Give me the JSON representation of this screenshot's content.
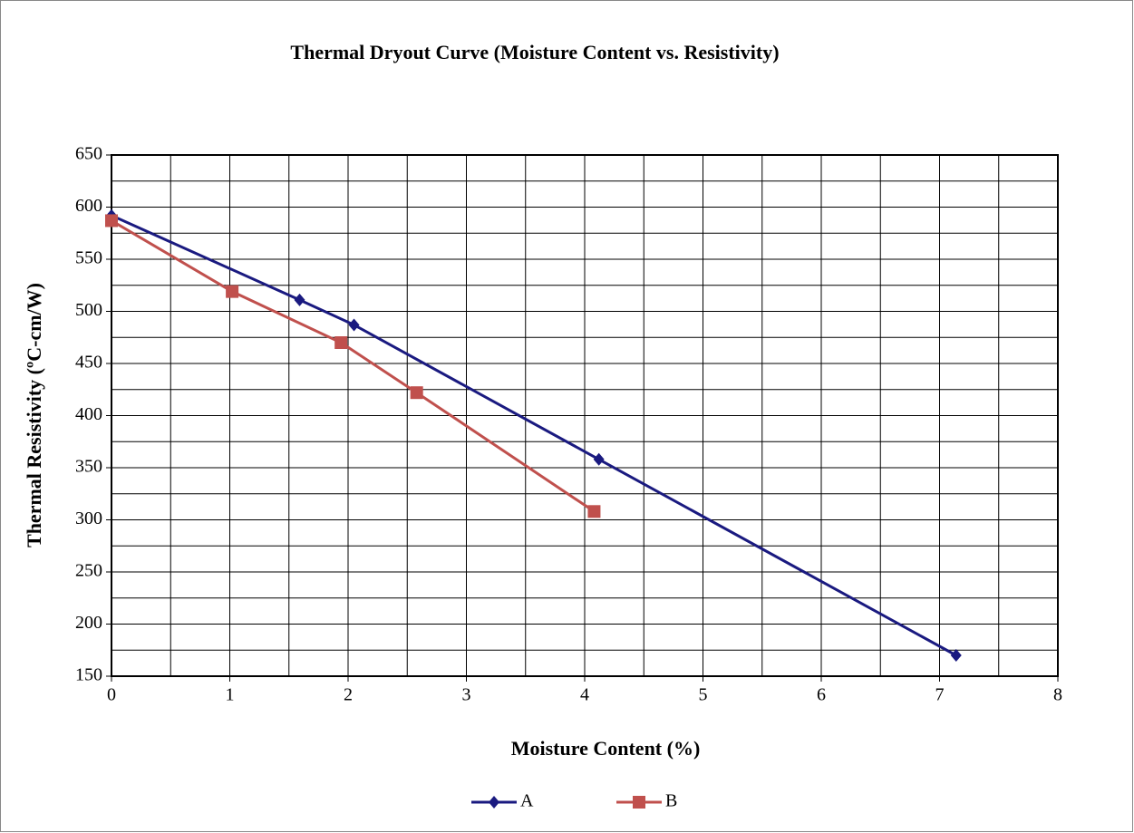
{
  "chart_data": {
    "type": "line",
    "title": "Thermal Dryout Curve (Moisture Content vs. Resistivity)",
    "x_label": "Moisture Content (%)",
    "y_label": "Thermal Resistivity (ºC-cm/W)",
    "series": [
      {
        "name": "A",
        "color": "#1a1a80",
        "marker": "diamond",
        "x": [
          0,
          1.59,
          2.05,
          4.12,
          7.14
        ],
        "values": [
          592,
          511,
          487,
          358,
          170
        ]
      },
      {
        "name": "B",
        "color": "#c0504d",
        "marker": "square",
        "x": [
          0,
          1.02,
          1.94,
          2.58,
          4.08
        ],
        "values": [
          587,
          519,
          470,
          422,
          308
        ]
      }
    ],
    "xlim": [
      0,
      8
    ],
    "xticks": [
      0,
      1,
      2,
      3,
      4,
      5,
      6,
      7,
      8
    ],
    "x_minor_ticks": [
      0.5,
      1.5,
      2.5,
      3.5,
      4.5,
      5.5,
      6.5,
      7.5
    ],
    "ylim": [
      150,
      650
    ],
    "yticks": [
      150,
      200,
      250,
      300,
      350,
      400,
      450,
      500,
      550,
      600,
      650
    ],
    "y_minor_ticks": [
      175,
      225,
      275,
      325,
      375,
      425,
      475,
      525,
      575,
      625
    ],
    "grid": true,
    "legend": "bottom"
  }
}
